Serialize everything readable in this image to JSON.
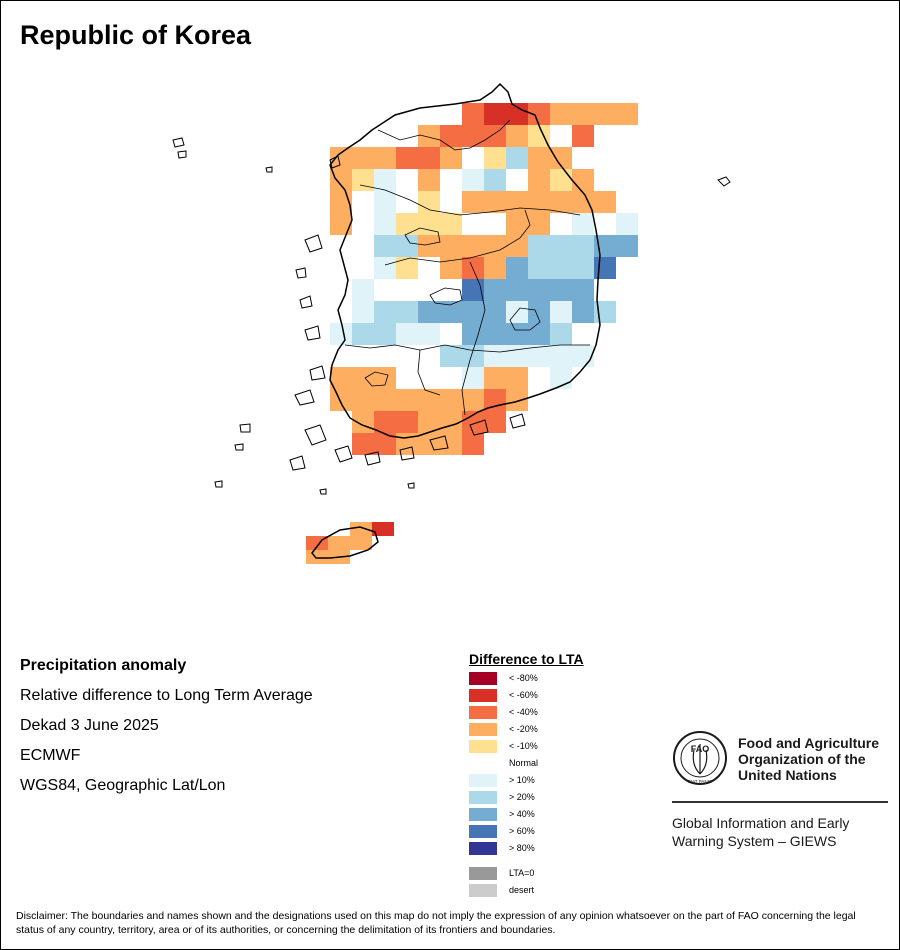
{
  "title": "Republic of Korea",
  "info": {
    "heading": "Precipitation anomaly",
    "subtitle": "Relative difference to Long Term Average",
    "period": "Dekad 3 June 2025",
    "source": "ECMWF",
    "projection": "WGS84, Geographic Lat/Lon"
  },
  "legend": {
    "title": "Difference to LTA",
    "items": [
      {
        "label": "< -80%",
        "color": "#a50026"
      },
      {
        "label": "< -60%",
        "color": "#d73027"
      },
      {
        "label": "< -40%",
        "color": "#f46d43"
      },
      {
        "label": "< -20%",
        "color": "#fdae61"
      },
      {
        "label": "< -10%",
        "color": "#fee090"
      },
      {
        "label": "Normal",
        "color": "#ffffff"
      },
      {
        "label": "> 10%",
        "color": "#e0f3f8"
      },
      {
        "label": "> 20%",
        "color": "#abd9e9"
      },
      {
        "label": "> 40%",
        "color": "#74add1"
      },
      {
        "label": "> 60%",
        "color": "#4575b4"
      },
      {
        "label": "> 80%",
        "color": "#313695"
      }
    ],
    "extra": [
      {
        "label": "LTA=0",
        "color": "#999999"
      },
      {
        "label": "desert",
        "color": "#cccccc"
      }
    ]
  },
  "org": {
    "logo_text": "FAO",
    "logo_motto": "FIAT PANIS",
    "name_line1": "Food and Agriculture",
    "name_line2": "Organization of the",
    "name_line3": "United Nations",
    "giews_line1": "Global Information and Early",
    "giews_line2": "Warning System – GIEWS"
  },
  "disclaimer": "Disclaimer: The boundaries and names shown and the designations used on this map do not imply the expression of any opinion whatsoever on the part of FAO concerning the legal status of any country, territory, area or of its authorities, or concerning the delimitation of its frontiers and boundaries.",
  "anomaly_grid": {
    "description_key": "rows of grid cells; value = legend class index (0=<-80% ... 5=Normal ... 10=>80%)",
    "rows": [
      {
        "row": 0,
        "cells": [
          [
            0,
            3,
            "2"
          ],
          [
            0,
            4,
            "1"
          ],
          [
            0,
            5,
            "1"
          ],
          [
            0,
            6,
            "2"
          ],
          [
            0,
            7,
            "3"
          ],
          [
            0,
            8,
            "3"
          ],
          [
            0,
            9,
            "3"
          ],
          [
            0,
            10,
            "3"
          ]
        ]
      },
      {
        "row": 1,
        "cells": [
          [
            1,
            2,
            "3"
          ],
          [
            1,
            3,
            "2"
          ],
          [
            1,
            4,
            "2"
          ],
          [
            1,
            5,
            "2"
          ],
          [
            1,
            6,
            "3"
          ],
          [
            1,
            7,
            "4"
          ],
          [
            1,
            8,
            "5"
          ],
          [
            1,
            9,
            "2"
          ]
        ]
      },
      {
        "row": 2,
        "cells": [
          [
            2,
            0,
            "3"
          ],
          [
            2,
            1,
            "3"
          ],
          [
            2,
            2,
            "3"
          ],
          [
            2,
            3,
            "2"
          ],
          [
            2,
            4,
            "2"
          ],
          [
            2,
            5,
            "3"
          ],
          [
            2,
            6,
            "5"
          ],
          [
            2,
            7,
            "4"
          ],
          [
            2,
            8,
            "7"
          ],
          [
            2,
            9,
            "3"
          ],
          [
            2,
            10,
            "3"
          ]
        ]
      },
      {
        "row": 3,
        "cells": [
          [
            3,
            0,
            "3"
          ],
          [
            3,
            1,
            "4"
          ],
          [
            3,
            2,
            "6"
          ],
          [
            3,
            3,
            "5"
          ],
          [
            3,
            4,
            "3"
          ],
          [
            3,
            5,
            "5"
          ],
          [
            3,
            6,
            "6"
          ],
          [
            3,
            7,
            "7"
          ],
          [
            3,
            8,
            "5"
          ],
          [
            3,
            9,
            "3"
          ],
          [
            3,
            10,
            "4"
          ],
          [
            3,
            11,
            "3"
          ]
        ]
      },
      {
        "row": 4,
        "cells": [
          [
            4,
            0,
            "3"
          ],
          [
            4,
            1,
            "5"
          ],
          [
            4,
            2,
            "6"
          ],
          [
            4,
            3,
            "5"
          ],
          [
            4,
            4,
            "4"
          ],
          [
            4,
            5,
            "5"
          ],
          [
            4,
            6,
            "3"
          ],
          [
            4,
            7,
            "3"
          ],
          [
            4,
            8,
            "3"
          ],
          [
            4,
            9,
            "3"
          ],
          [
            4,
            10,
            "3"
          ],
          [
            4,
            11,
            "3"
          ],
          [
            4,
            12,
            "3"
          ]
        ]
      },
      {
        "row": 5,
        "cells": [
          [
            5,
            0,
            "3"
          ],
          [
            5,
            1,
            "5"
          ],
          [
            5,
            2,
            "6"
          ],
          [
            5,
            3,
            "4"
          ],
          [
            5,
            4,
            "4"
          ],
          [
            5,
            5,
            "4"
          ],
          [
            5,
            6,
            "5"
          ],
          [
            5,
            7,
            "5"
          ],
          [
            5,
            8,
            "3"
          ],
          [
            5,
            9,
            "3"
          ],
          [
            5,
            10,
            "5"
          ],
          [
            5,
            11,
            "6"
          ],
          [
            5,
            12,
            "5"
          ],
          [
            5,
            13,
            "6"
          ]
        ]
      },
      {
        "row": 6,
        "cells": [
          [
            6,
            0,
            "5"
          ],
          [
            6,
            1,
            "5"
          ],
          [
            6,
            2,
            "7"
          ],
          [
            6,
            3,
            "7"
          ],
          [
            6,
            4,
            "3"
          ],
          [
            6,
            5,
            "3"
          ],
          [
            6,
            6,
            "3"
          ],
          [
            6,
            7,
            "3"
          ],
          [
            6,
            8,
            "3"
          ],
          [
            6,
            9,
            "7"
          ],
          [
            6,
            10,
            "7"
          ],
          [
            6,
            11,
            "7"
          ],
          [
            6,
            12,
            "8"
          ],
          [
            6,
            13,
            "8"
          ]
        ]
      },
      {
        "row": 7,
        "cells": [
          [
            7,
            0,
            "5"
          ],
          [
            7,
            1,
            "5"
          ],
          [
            7,
            2,
            "6"
          ],
          [
            7,
            3,
            "4"
          ],
          [
            7,
            4,
            "5"
          ],
          [
            7,
            5,
            "3"
          ],
          [
            7,
            6,
            "2"
          ],
          [
            7,
            7,
            "3"
          ],
          [
            7,
            8,
            "8"
          ],
          [
            7,
            9,
            "7"
          ],
          [
            7,
            10,
            "7"
          ],
          [
            7,
            11,
            "7"
          ],
          [
            7,
            12,
            "9"
          ]
        ]
      },
      {
        "row": 8,
        "cells": [
          [
            8,
            0,
            "5"
          ],
          [
            8,
            1,
            "6"
          ],
          [
            8,
            2,
            "5"
          ],
          [
            8,
            3,
            "5"
          ],
          [
            8,
            4,
            "5"
          ],
          [
            8,
            5,
            "5"
          ],
          [
            8,
            6,
            "9"
          ],
          [
            8,
            7,
            "8"
          ],
          [
            8,
            8,
            "8"
          ],
          [
            8,
            9,
            "8"
          ],
          [
            8,
            10,
            "8"
          ],
          [
            8,
            11,
            "8"
          ]
        ]
      },
      {
        "row": 9,
        "cells": [
          [
            9,
            0,
            "5"
          ],
          [
            9,
            1,
            "6"
          ],
          [
            9,
            2,
            "7"
          ],
          [
            9,
            3,
            "7"
          ],
          [
            9,
            4,
            "8"
          ],
          [
            9,
            5,
            "8"
          ],
          [
            9,
            6,
            "8"
          ],
          [
            9,
            7,
            "8"
          ],
          [
            9,
            8,
            "6"
          ],
          [
            9,
            9,
            "8"
          ],
          [
            9,
            10,
            "6"
          ],
          [
            9,
            11,
            "8"
          ],
          [
            9,
            12,
            "7"
          ]
        ]
      },
      {
        "row": 10,
        "cells": [
          [
            10,
            0,
            "6"
          ],
          [
            10,
            1,
            "7"
          ],
          [
            10,
            2,
            "7"
          ],
          [
            10,
            3,
            "6"
          ],
          [
            10,
            4,
            "6"
          ],
          [
            10,
            5,
            "5"
          ],
          [
            10,
            6,
            "8"
          ],
          [
            10,
            7,
            "8"
          ],
          [
            10,
            8,
            "8"
          ],
          [
            10,
            9,
            "8"
          ],
          [
            10,
            10,
            "7"
          ]
        ]
      },
      {
        "row": 11,
        "cells": [
          [
            11,
            0,
            "5"
          ],
          [
            11,
            1,
            "5"
          ],
          [
            11,
            2,
            "5"
          ],
          [
            11,
            3,
            "5"
          ],
          [
            11,
            4,
            "5"
          ],
          [
            11,
            5,
            "7"
          ],
          [
            11,
            6,
            "7"
          ],
          [
            11,
            7,
            "6"
          ],
          [
            11,
            8,
            "6"
          ],
          [
            11,
            9,
            "6"
          ],
          [
            11,
            10,
            "6"
          ],
          [
            11,
            11,
            "6"
          ]
        ]
      },
      {
        "row": 12,
        "cells": [
          [
            12,
            0,
            "3"
          ],
          [
            12,
            1,
            "3"
          ],
          [
            12,
            2,
            "3"
          ],
          [
            12,
            3,
            "5"
          ],
          [
            12,
            4,
            "5"
          ],
          [
            12,
            5,
            "5"
          ],
          [
            12,
            6,
            "6"
          ],
          [
            12,
            7,
            "3"
          ],
          [
            12,
            8,
            "3"
          ],
          [
            12,
            9,
            "5"
          ],
          [
            12,
            10,
            "6"
          ]
        ]
      },
      {
        "row": 13,
        "cells": [
          [
            13,
            0,
            "3"
          ],
          [
            13,
            1,
            "3"
          ],
          [
            13,
            2,
            "3"
          ],
          [
            13,
            3,
            "3"
          ],
          [
            13,
            4,
            "3"
          ],
          [
            13,
            5,
            "3"
          ],
          [
            13,
            6,
            "3"
          ],
          [
            13,
            7,
            "2"
          ],
          [
            13,
            8,
            "3"
          ],
          [
            13,
            9,
            "5"
          ]
        ]
      },
      {
        "row": 14,
        "cells": [
          [
            14,
            0,
            "3"
          ],
          [
            14,
            1,
            "2"
          ],
          [
            14,
            2,
            "2"
          ],
          [
            14,
            3,
            "3"
          ],
          [
            14,
            4,
            "3"
          ],
          [
            14,
            5,
            "2"
          ],
          [
            14,
            6,
            "2"
          ]
        ]
      },
      {
        "row": 15,
        "cells": [
          [
            15,
            0,
            "2"
          ],
          [
            15,
            1,
            "2"
          ],
          [
            15,
            2,
            "3"
          ],
          [
            15,
            3,
            "3"
          ],
          [
            15,
            4,
            "3"
          ],
          [
            15,
            5,
            "2"
          ]
        ]
      }
    ]
  }
}
